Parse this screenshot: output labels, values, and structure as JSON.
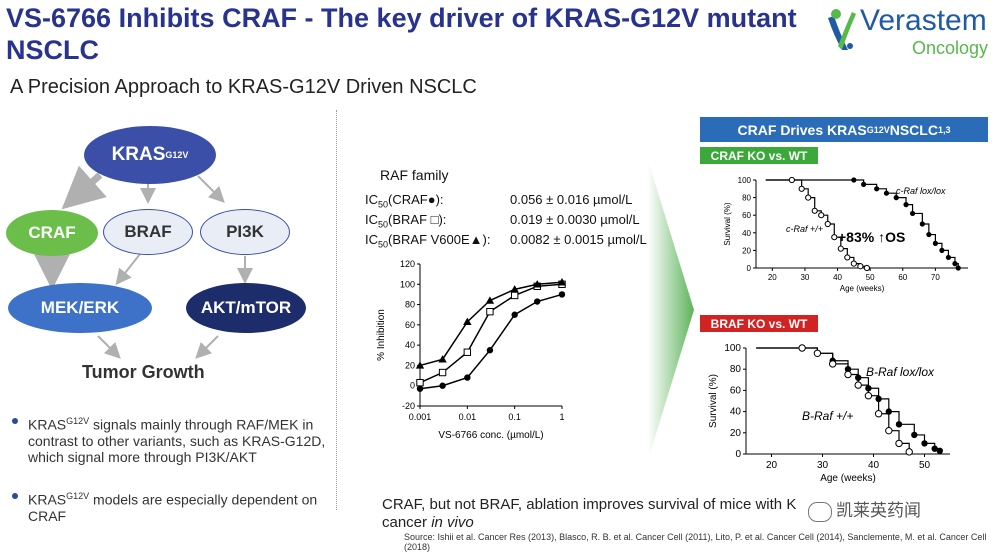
{
  "header": {
    "title": "VS-6766 Inhibits CRAF - The key driver of KRAS-G12V mutant NSCLC",
    "subtitle": "A Precision Approach to KRAS-G12V Driven NSCLC"
  },
  "logo": {
    "name": "Verastem",
    "tagline": "Oncology"
  },
  "pathway": {
    "kras": "KRAS",
    "kras_sup": "G12V",
    "craf": "CRAF",
    "braf": "BRAF",
    "pi3k": "PI3K",
    "mek": "MEK/ERK",
    "akt": "AKT/mTOR",
    "tumor": "Tumor Growth"
  },
  "bullets": [
    {
      "pre": "KRAS",
      "sup": "G12V",
      "post": " signals mainly through RAF/MEK in contrast to other variants, such as KRAS-G12D, which signal more through PI3K/AKT"
    },
    {
      "pre": "KRAS",
      "sup": "G12V",
      "post": " models are especially dependent on CRAF"
    }
  ],
  "ic50": {
    "heading": "RAF family",
    "rows": [
      {
        "ic": "IC",
        "sub": "50",
        "label": "(CRAF●):",
        "value": "0.056 ± 0.016 µmol/L"
      },
      {
        "ic": "IC",
        "sub": "50",
        "label": "(BRAF □):",
        "value": "0.019 ± 0.0030 µmol/L"
      },
      {
        "ic": "IC",
        "sub": "50",
        "label": "(BRAF V600E▲):",
        "value": "0.0082 ± 0.0015 µmol/L"
      }
    ]
  },
  "right": {
    "craf_header": "CRAF Drives KRAS",
    "craf_header_sup": "G12V",
    "craf_header_post": " NSCLC",
    "craf_header_ref": "1,3",
    "craf_ko": "CRAF KO vs. WT",
    "braf_ko": "BRAF KO vs. WT",
    "os_label": "+83% ↑OS"
  },
  "footer": {
    "conclusion_a": "CRAF, but not BRAF, ablation improves survival of mice with K",
    "conclusion_b": "cancer ",
    "conclusion_italic": "in vivo",
    "source": "Source: Ishii et al. Cancer Res (2013), Blasco, R. B. et al. Cancer Cell (2011), Lito, P. et al. Cancer Cell (2014), Sanclemente, M. et al. Cancer Cell (2018)",
    "watermark": "凯莱英药闻"
  },
  "colors": {
    "title": "#27338f",
    "kras": "#3b4fa8",
    "craf": "#6cbe4a",
    "mek": "#3d72c8",
    "akt": "#1d2d6b",
    "header_blue": "#2a6cb8",
    "ko_green": "#3aa93a",
    "ko_red": "#d22323"
  },
  "chart_data": [
    {
      "type": "line",
      "title": "",
      "xlabel": "VS-6766 conc. (µmol/L)",
      "ylabel": "% Inhibition",
      "xscale": "log",
      "xticks": [
        "0.001",
        "0.01",
        "0.1",
        "1"
      ],
      "yticks": [
        "-20",
        "0",
        "20",
        "40",
        "60",
        "80",
        "100",
        "120"
      ],
      "ylim": [
        -20,
        120
      ],
      "series": [
        {
          "name": "CRAF",
          "marker": "circle-filled",
          "x": [
            0.001,
            0.003,
            0.01,
            0.03,
            0.1,
            0.3,
            1
          ],
          "y": [
            -3,
            0,
            8,
            35,
            70,
            83,
            90
          ]
        },
        {
          "name": "BRAF",
          "marker": "square-open",
          "x": [
            0.001,
            0.003,
            0.01,
            0.03,
            0.1,
            0.3,
            1
          ],
          "y": [
            3,
            13,
            33,
            73,
            89,
            98,
            100
          ]
        },
        {
          "name": "BRAF V600E",
          "marker": "triangle-filled",
          "x": [
            0.001,
            0.003,
            0.01,
            0.03,
            0.1,
            0.3,
            1
          ],
          "y": [
            20,
            26,
            63,
            84,
            95,
            100,
            102
          ]
        }
      ]
    },
    {
      "type": "line",
      "title": "CRAF KO vs. WT",
      "xlabel": "Age (weeks)",
      "ylabel": "Survival (%)",
      "xticks": [
        "20",
        "30",
        "40",
        "50",
        "60",
        "70"
      ],
      "yticks": [
        "0",
        "20",
        "40",
        "60",
        "80",
        "100"
      ],
      "series": [
        {
          "name": "c-Raf lox/lox",
          "marker": "circle-filled",
          "x": [
            18,
            45,
            48,
            52,
            55,
            58,
            61,
            63,
            66,
            68,
            70,
            72,
            74,
            76,
            77
          ],
          "y": [
            100,
            100,
            95,
            90,
            85,
            80,
            72,
            62,
            50,
            38,
            28,
            20,
            12,
            5,
            0
          ]
        },
        {
          "name": "c-Raf +/+",
          "marker": "circle-open",
          "x": [
            18,
            26,
            29,
            31,
            33,
            35,
            37,
            39,
            41,
            43,
            45,
            47,
            49
          ],
          "y": [
            100,
            100,
            90,
            80,
            65,
            60,
            50,
            35,
            22,
            12,
            5,
            2,
            0
          ]
        }
      ]
    },
    {
      "type": "line",
      "title": "BRAF KO vs. WT",
      "xlabel": "Age (weeks)",
      "ylabel": "Survival (%)",
      "xticks": [
        "20",
        "30",
        "40",
        "50"
      ],
      "yticks": [
        "0",
        "20",
        "40",
        "60",
        "80",
        "100"
      ],
      "series": [
        {
          "name": "B-Raf lox/lox",
          "marker": "circle-filled",
          "x": [
            17,
            26,
            29,
            32,
            35,
            37,
            39,
            41,
            43,
            45,
            48,
            50,
            52,
            53
          ],
          "y": [
            100,
            100,
            95,
            88,
            80,
            72,
            62,
            52,
            40,
            28,
            18,
            10,
            5,
            3
          ]
        },
        {
          "name": "B-Raf +/+",
          "marker": "circle-open",
          "x": [
            17,
            26,
            29,
            32,
            35,
            37,
            39,
            41,
            43,
            45,
            47
          ],
          "y": [
            100,
            100,
            95,
            85,
            75,
            65,
            55,
            38,
            22,
            10,
            2
          ]
        }
      ]
    }
  ]
}
